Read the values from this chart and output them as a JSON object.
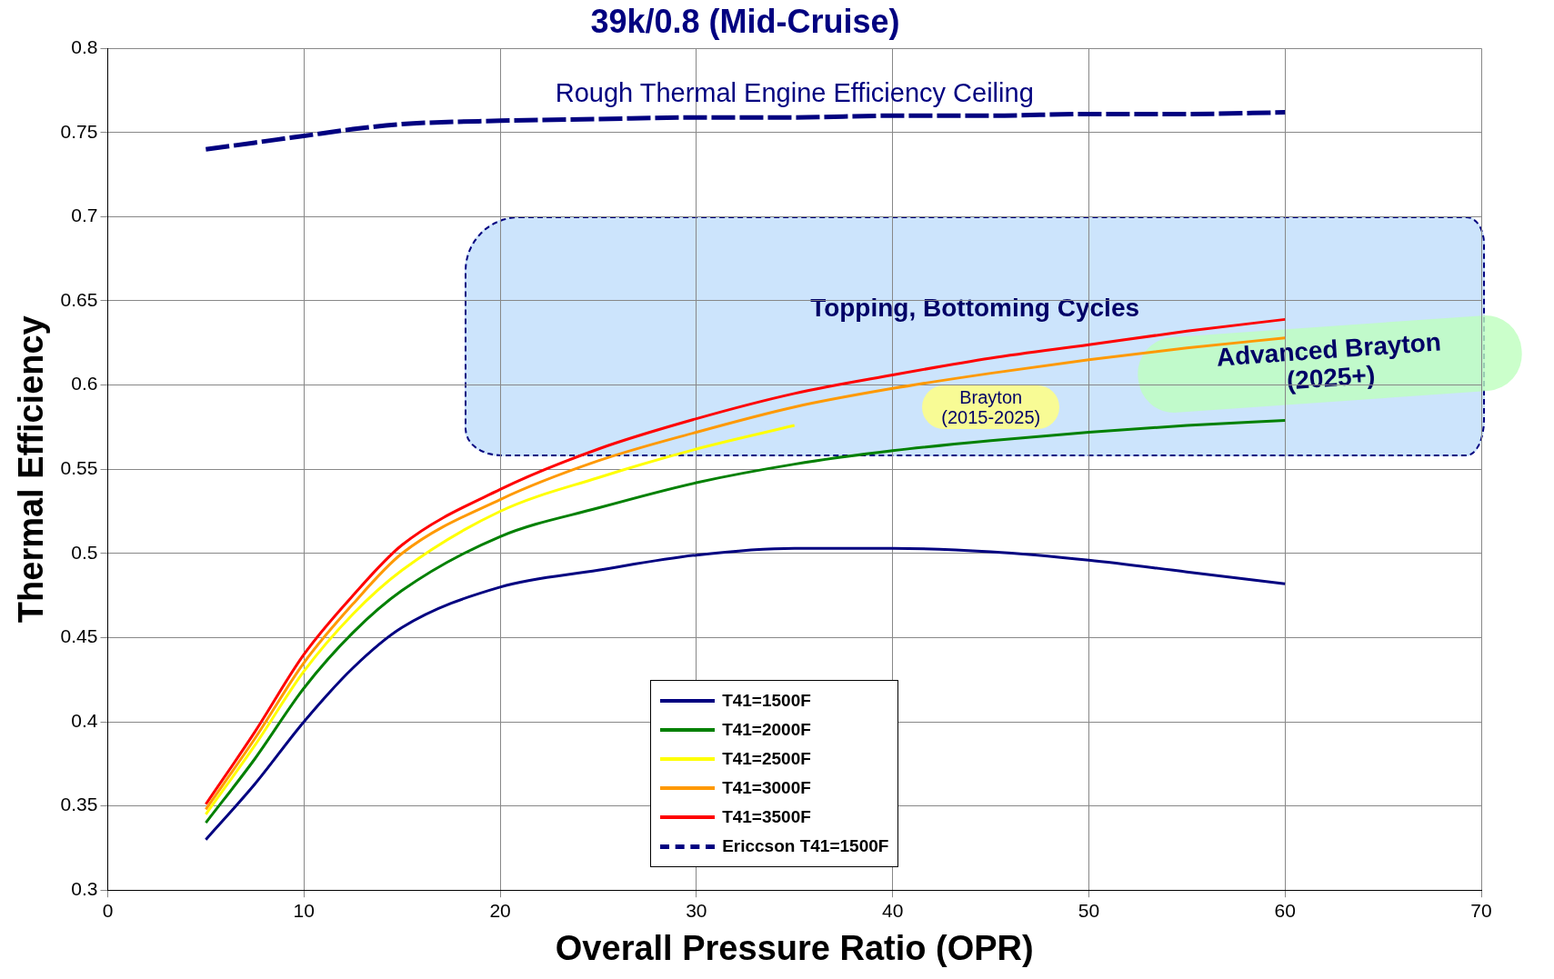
{
  "chart_data": {
    "type": "line",
    "title": "39k/0.8 (Mid-Cruise)",
    "xlabel": "Overall Pressure Ratio (OPR)",
    "ylabel": "Thermal Efficiency",
    "x": [
      5,
      7.5,
      10,
      12.5,
      15,
      20,
      25,
      30,
      35,
      40,
      45,
      50,
      55,
      60
    ],
    "series": [
      {
        "name": "T41=1500F",
        "color": "#000080",
        "values": [
          0.33,
          0.363,
          0.4,
          0.432,
          0.456,
          0.48,
          0.49,
          0.499,
          0.503,
          0.503,
          0.501,
          0.496,
          0.489,
          0.482
        ]
      },
      {
        "name": "T41=2000F",
        "color": "#008000",
        "values": [
          0.34,
          0.378,
          0.42,
          0.453,
          0.478,
          0.51,
          0.527,
          0.542,
          0.553,
          0.561,
          0.567,
          0.572,
          0.576,
          0.579
        ]
      },
      {
        "name": "T41=2500F",
        "color": "#ffff00",
        "values": [
          0.345,
          0.386,
          0.43,
          0.464,
          0.49,
          0.525,
          0.545,
          0.562,
          0.576,
          null,
          null,
          null,
          null,
          null
        ]
      },
      {
        "name": "T41=3000F",
        "color": "#ff9900",
        "values": [
          0.348,
          0.39,
          0.435,
          0.47,
          0.5,
          0.532,
          0.555,
          0.572,
          0.587,
          0.598,
          0.607,
          0.615,
          0.622,
          0.628
        ]
      },
      {
        "name": "T41=3500F",
        "color": "#ff0000",
        "values": [
          0.351,
          0.394,
          0.44,
          0.475,
          0.505,
          0.538,
          0.562,
          0.58,
          0.595,
          0.606,
          0.616,
          0.624,
          0.632,
          0.639
        ]
      },
      {
        "name": "Ericcson T41=1500F",
        "color": "#000080",
        "line_style": "dashed",
        "values": [
          0.74,
          0.744,
          0.748,
          0.752,
          0.755,
          0.757,
          0.758,
          0.759,
          0.759,
          0.76,
          0.76,
          0.761,
          0.761,
          0.762
        ]
      }
    ],
    "xlim": [
      0,
      70
    ],
    "xticks": [
      0,
      10,
      20,
      30,
      40,
      50,
      60,
      70
    ],
    "ylim": [
      0.3,
      0.8
    ],
    "yticks": [
      0.3,
      0.35,
      0.4,
      0.45,
      0.5,
      0.55,
      0.6,
      0.65,
      0.7,
      0.75,
      0.8
    ],
    "grid": true,
    "legend": "bottom",
    "marker": "none",
    "line_style": "solid",
    "annotations": [
      "Rough Thermal Engine Efficiency Ceiling",
      "Topping, Bottoming Cycles",
      "Brayton\n(2015-2025)",
      "Advanced Brayton\n(2025+)"
    ]
  }
}
